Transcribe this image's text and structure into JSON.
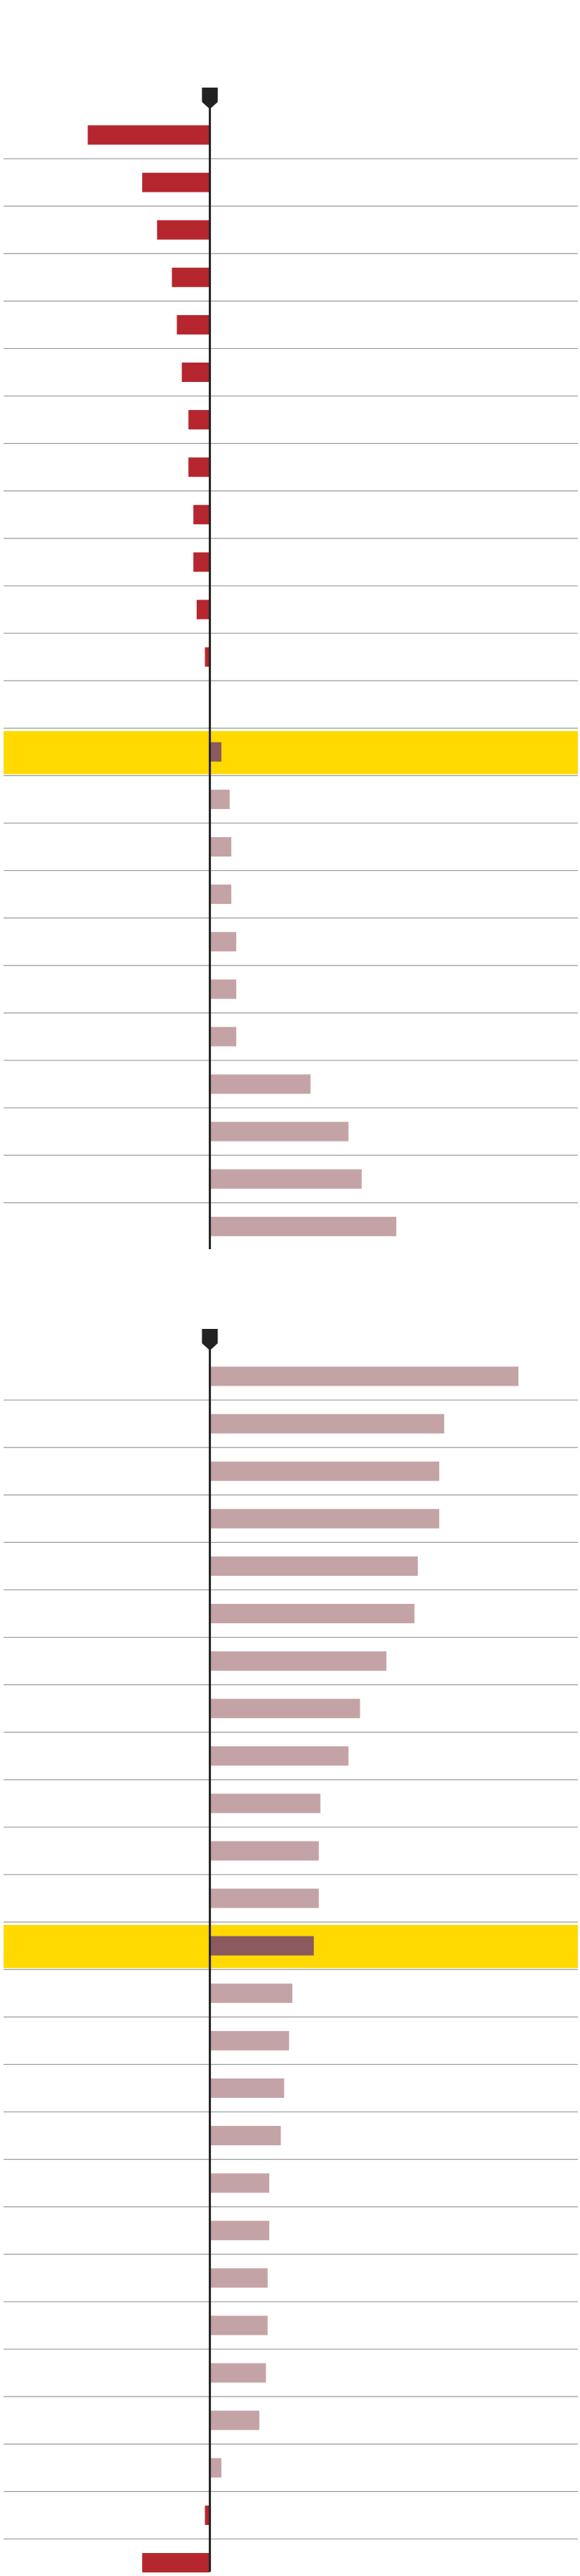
{
  "chart_data": [
    {
      "type": "diverging-bar",
      "orientation": "horizontal",
      "xlim": [
        -125,
        223
      ],
      "values": [
        -74,
        -41,
        -32,
        -23,
        -20,
        -17,
        -13,
        -13,
        -10,
        -10,
        -8,
        -3,
        0,
        7,
        12,
        13,
        13,
        16,
        16,
        16,
        61,
        84,
        92,
        113
      ],
      "highlight": 13,
      "negative_color": "#b5262e",
      "positive_color": "#c4a3a6",
      "highlight_bar_color": "#8b5a5e",
      "highlight_band_color": "#ffd900"
    },
    {
      "type": "diverging-bar",
      "orientation": "horizontal",
      "xlim": [
        -125,
        223
      ],
      "values": [
        187,
        142,
        139,
        139,
        126,
        124,
        107,
        91,
        84,
        67,
        66,
        66,
        63,
        50,
        48,
        45,
        43,
        36,
        36,
        35,
        35,
        34,
        30,
        7,
        -3,
        -41
      ],
      "highlight": 12,
      "negative_color": "#b5262e",
      "positive_color": "#c4a3a6",
      "highlight_bar_color": "#8b5a5e",
      "highlight_band_color": "#ffd900"
    }
  ]
}
